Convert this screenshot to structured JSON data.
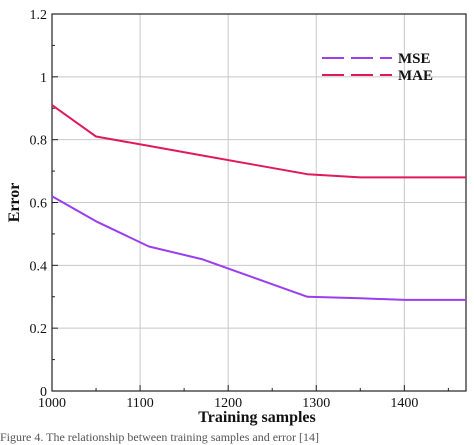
{
  "chart_data": {
    "type": "line",
    "xlabel": "Training samples",
    "ylabel": "Error",
    "xlim": [
      1000,
      1470
    ],
    "ylim": [
      0,
      1.2
    ],
    "x_ticks": [
      "1000",
      "1100",
      "1200",
      "1300",
      "1400"
    ],
    "y_ticks": [
      "0",
      "0.2",
      "0.4",
      "0.6",
      "0.8",
      "1",
      "1.2"
    ],
    "grid": true,
    "legend_position": "top-right",
    "series": [
      {
        "name": "MSE",
        "color": "#9b3df0",
        "x": [
          1000,
          1050,
          1110,
          1170,
          1230,
          1290,
          1350,
          1400,
          1470
        ],
        "y": [
          0.62,
          0.54,
          0.46,
          0.42,
          0.36,
          0.3,
          0.295,
          0.29,
          0.29
        ]
      },
      {
        "name": "MAE",
        "color": "#e0185e",
        "x": [
          1000,
          1050,
          1110,
          1170,
          1230,
          1290,
          1350,
          1400,
          1470
        ],
        "y": [
          0.91,
          0.81,
          0.78,
          0.75,
          0.72,
          0.69,
          0.68,
          0.68,
          0.68
        ]
      }
    ]
  },
  "caption": "Figure 4.  The relationship between training samples and error [14]"
}
